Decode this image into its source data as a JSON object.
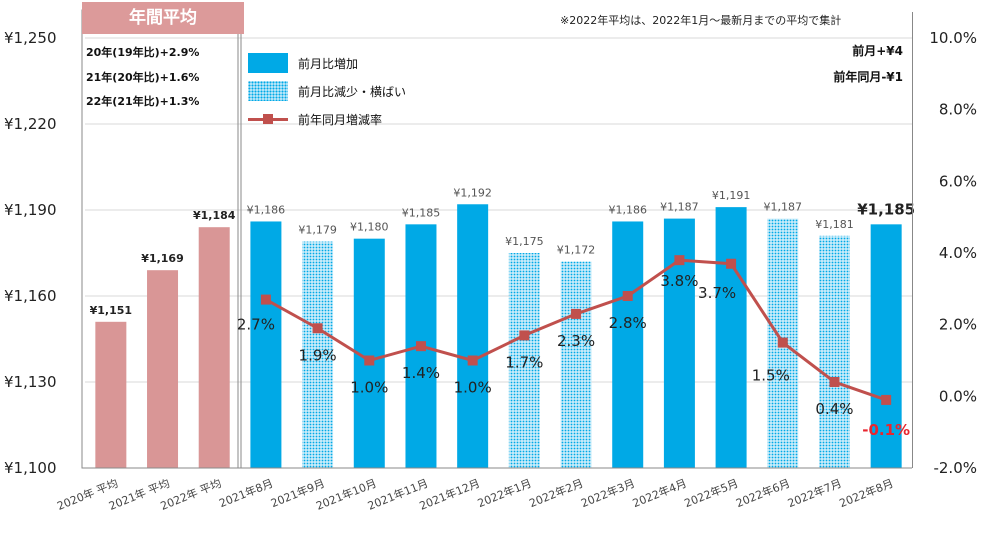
{
  "badge_label": "年間平均",
  "note": "※2022年平均は、2022年1月～最新月までの平均で集計",
  "annual_changes": [
    "20年(19年比)+2.9%",
    "21年(20年比)+1.6%",
    "22年(21年比)+1.3%"
  ],
  "latest_changes": [
    "前月+¥4",
    "前年同月-¥1"
  ],
  "legend": {
    "increase": "前月比増加",
    "decrease": "前月比減少・横ばい",
    "yoy": "前年同月増減率"
  },
  "colors": {
    "annual": "#d99696",
    "increase": "#00a9e6",
    "decrease_pattern": "#00a9e6",
    "decrease_bg": "#c9ecfa",
    "yoy_line": "#c0504d",
    "negative_label": "#e8262f"
  },
  "chart_data": {
    "type": "bar",
    "categories": [
      "2020年 平均",
      "2021年 平均",
      "2022年 平均",
      "2021年8月",
      "2021年9月",
      "2021年10月",
      "2021年11月",
      "2021年12月",
      "2022年1月",
      "2022年2月",
      "2022年3月",
      "2022年4月",
      "2022年5月",
      "2022年6月",
      "2022年7月",
      "2022年8月"
    ],
    "values": [
      1151,
      1169,
      1184,
      1186,
      1179,
      1180,
      1185,
      1192,
      1175,
      1172,
      1186,
      1187,
      1191,
      1187,
      1181,
      1185
    ],
    "value_labels": [
      "¥1,151",
      "¥1,169",
      "¥1,184",
      "¥1,186",
      "¥1,179",
      "¥1,180",
      "¥1,185",
      "¥1,192",
      "¥1,175",
      "¥1,172",
      "¥1,186",
      "¥1,187",
      "¥1,191",
      "¥1,187",
      "¥1,181",
      "¥1,185"
    ],
    "bar_styles": [
      "annual",
      "annual",
      "annual",
      "increase",
      "decrease",
      "increase",
      "increase",
      "increase",
      "decrease",
      "decrease",
      "increase",
      "increase",
      "increase",
      "decrease",
      "decrease",
      "increase"
    ],
    "ylim": [
      1100,
      1250
    ],
    "yticks": [
      1100,
      1130,
      1160,
      1190,
      1220,
      1250
    ],
    "ytick_labels": [
      "¥1,100",
      "¥1,130",
      "¥1,160",
      "¥1,190",
      "¥1,220",
      "¥1,250"
    ],
    "y2lim": [
      -2,
      10
    ],
    "y2ticks": [
      -2,
      0,
      2,
      4,
      6,
      8,
      10
    ],
    "y2tick_labels": [
      "-2.0%",
      "0.0%",
      "2.0%",
      "4.0%",
      "6.0%",
      "8.0%",
      "10.0%"
    ],
    "yoy_series": {
      "name": "前年同月増減率",
      "values": [
        2.7,
        1.9,
        1.0,
        1.4,
        1.0,
        1.7,
        2.3,
        2.8,
        3.8,
        3.7,
        1.5,
        0.4,
        -0.1
      ],
      "labels": [
        "2.7%",
        "1.9%",
        "1.0%",
        "1.4%",
        "1.0%",
        "1.7%",
        "2.3%",
        "2.8%",
        "3.8%",
        "3.7%",
        "1.5%",
        "0.4%",
        "-0.1%"
      ]
    }
  }
}
